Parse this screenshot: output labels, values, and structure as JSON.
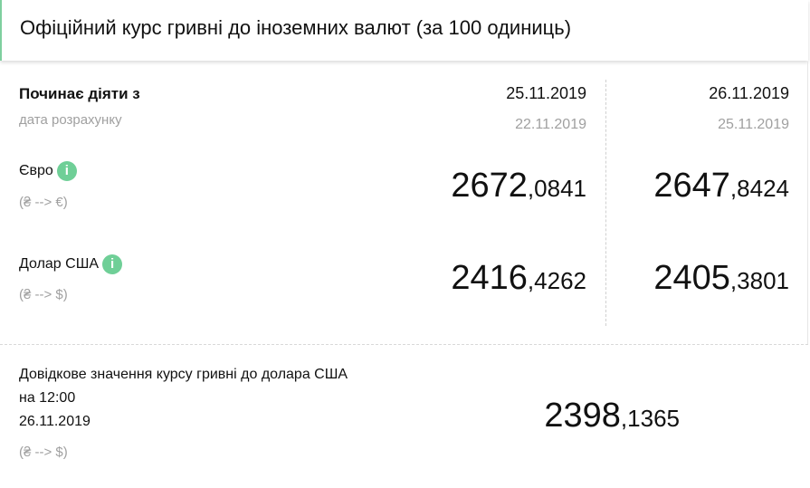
{
  "header": {
    "title": "Офіційний курс гривні до іноземних валют (за 100 одиниць)"
  },
  "columns_header": {
    "label": "Починає діяти з",
    "sublabel": "дата розрахунку"
  },
  "dates": [
    {
      "effective": "25.11.2019",
      "calc": "22.11.2019"
    },
    {
      "effective": "26.11.2019",
      "calc": "25.11.2019"
    }
  ],
  "currencies": [
    {
      "name": "Євро",
      "direction": "(₴ --> €)",
      "icon": "info-icon",
      "rates": [
        {
          "int": "2672",
          "frac": ",0841"
        },
        {
          "int": "2647",
          "frac": ",8424"
        }
      ]
    },
    {
      "name": "Долар США",
      "direction": "(₴ --> $)",
      "icon": "info-icon",
      "rates": [
        {
          "int": "2416",
          "frac": ",4262"
        },
        {
          "int": "2405",
          "frac": ",3801"
        }
      ]
    }
  ],
  "reference": {
    "title": "Довідкове значення курсу гривні до долара США",
    "time": "на 12:00",
    "date": "26.11.2019",
    "direction": "(₴ --> $)",
    "rate": {
      "int": "2398",
      "frac": ",1365"
    }
  },
  "info_glyph": "i",
  "colors": {
    "accent": "#6fcf97",
    "muted": "#a0a0a0"
  }
}
